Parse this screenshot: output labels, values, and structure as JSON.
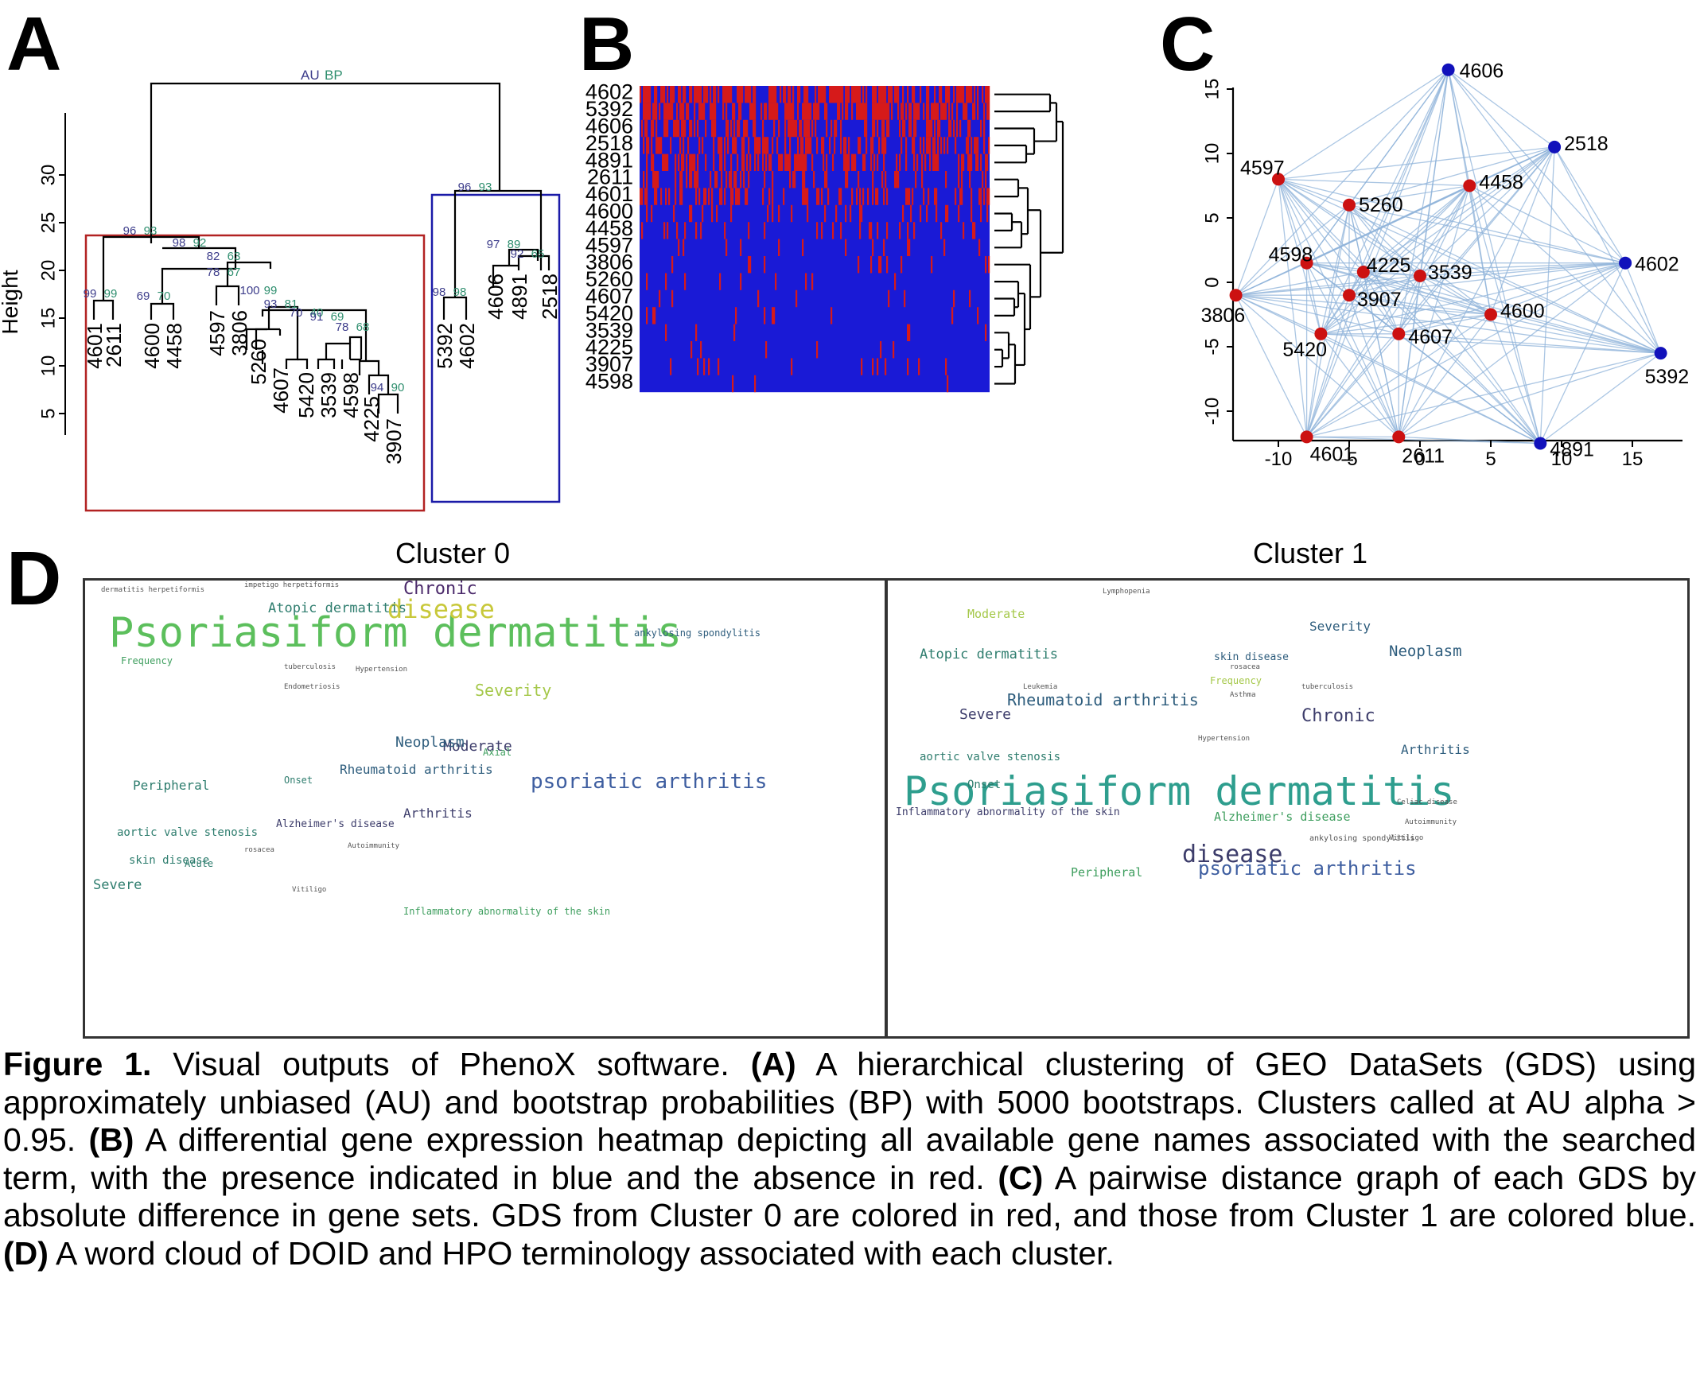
{
  "panels": {
    "A": "A",
    "B": "B",
    "C": "C",
    "D": "D"
  },
  "panelA": {
    "ylabel": "Height",
    "yticks": [
      "5",
      "10",
      "15",
      "20",
      "25",
      "30"
    ],
    "root_au": "AU",
    "root_bp": "BP",
    "leaves": [
      "4601",
      "2611",
      "4600",
      "4458",
      "4597",
      "3806",
      "5260",
      "4607",
      "5420",
      "3539",
      "4598",
      "4225",
      "3907",
      "5392",
      "4602",
      "4606",
      "4891",
      "2518"
    ],
    "values": [
      {
        "au": "96",
        "bp": "93"
      },
      {
        "au": "98",
        "bp": "92"
      },
      {
        "au": "82",
        "bp": "63"
      },
      {
        "au": "99",
        "bp": "99"
      },
      {
        "au": "69",
        "bp": "70"
      },
      {
        "au": "78",
        "bp": "67"
      },
      {
        "au": "100",
        "bp": "99"
      },
      {
        "au": "93",
        "bp": "81"
      },
      {
        "au": "70",
        "bp": "40"
      },
      {
        "au": "91",
        "bp": "69"
      },
      {
        "au": "78",
        "bp": "68"
      },
      {
        "au": "94",
        "bp": "90"
      },
      {
        "au": "96",
        "bp": "93"
      },
      {
        "au": "98",
        "bp": "98"
      },
      {
        "au": "97",
        "bp": "89"
      },
      {
        "au": "92",
        "bp": "65"
      }
    ]
  },
  "panelB": {
    "rows": [
      "4602",
      "5392",
      "4606",
      "2518",
      "4891",
      "2611",
      "4601",
      "4600",
      "4458",
      "4597",
      "3806",
      "5260",
      "4607",
      "5420",
      "3539",
      "4225",
      "3907",
      "4598"
    ],
    "presence_color": "#1a1ad6",
    "absence_color": "#d61a1a"
  },
  "panelC": {
    "xticks": [
      "-10",
      "-5",
      "0",
      "5",
      "10",
      "15"
    ],
    "yticks": [
      "15",
      "10",
      "5",
      "0",
      "-5",
      "-10"
    ],
    "cluster0_color": "#cc1111",
    "cluster1_color": "#1111bb",
    "edge_color": "#8fb3d9",
    "nodes": [
      {
        "label": "4606",
        "x": 2,
        "y": 16.5,
        "cluster": 1
      },
      {
        "label": "2518",
        "x": 9.5,
        "y": 10.5,
        "cluster": 1
      },
      {
        "label": "4602",
        "x": 14.5,
        "y": 1.5,
        "cluster": 1
      },
      {
        "label": "5392",
        "x": 17,
        "y": -5.5,
        "cluster": 1
      },
      {
        "label": "4891",
        "x": 8.5,
        "y": -12.5,
        "cluster": 1
      },
      {
        "label": "4597",
        "x": -10,
        "y": 8,
        "cluster": 0
      },
      {
        "label": "5260",
        "x": -5,
        "y": 6,
        "cluster": 0
      },
      {
        "label": "4458",
        "x": 3.5,
        "y": 7.5,
        "cluster": 0
      },
      {
        "label": "4598",
        "x": -8,
        "y": 1.5,
        "cluster": 0
      },
      {
        "label": "4225",
        "x": -4,
        "y": 0.8,
        "cluster": 0
      },
      {
        "label": "3539",
        "x": 0,
        "y": 0.5,
        "cluster": 0
      },
      {
        "label": "3907",
        "x": -5,
        "y": -1,
        "cluster": 0
      },
      {
        "label": "4600",
        "x": 5,
        "y": -2.5,
        "cluster": 0
      },
      {
        "label": "3806",
        "x": -13,
        "y": -1,
        "cluster": 0
      },
      {
        "label": "5420",
        "x": -7,
        "y": -4,
        "cluster": 0
      },
      {
        "label": "4607",
        "x": -1.5,
        "y": -4,
        "cluster": 0
      },
      {
        "label": "4601",
        "x": -8,
        "y": -12,
        "cluster": 0
      },
      {
        "label": "2611",
        "x": -1.5,
        "y": -12,
        "cluster": 0
      }
    ]
  },
  "panelD": {
    "cluster0_title": "Cluster 0",
    "cluster1_title": "Cluster 1",
    "cluster0_words": [
      {
        "t": "Psoriasiform dermatitis",
        "s": 52,
        "c": "#5cbf5c"
      },
      {
        "t": "disease",
        "s": 32,
        "c": "#c8c83a"
      },
      {
        "t": "Chronic",
        "s": 22,
        "c": "#4b2a6b"
      },
      {
        "t": "Atopic dermatitis",
        "s": 17,
        "c": "#2e7d6e"
      },
      {
        "t": "Severity",
        "s": 20,
        "c": "#a5c84a"
      },
      {
        "t": "Moderate",
        "s": 18,
        "c": "#3d3d6b"
      },
      {
        "t": "Neoplasm",
        "s": 18,
        "c": "#2e5d7d"
      },
      {
        "t": "psoriatic arthritis",
        "s": 26,
        "c": "#3e5ea0"
      },
      {
        "t": "Rheumatoid arthritis",
        "s": 16,
        "c": "#2e5d7d"
      },
      {
        "t": "Arthritis",
        "s": 16,
        "c": "#3d3d6b"
      },
      {
        "t": "Peripheral",
        "s": 16,
        "c": "#2e7d6e"
      },
      {
        "t": "aortic valve stenosis",
        "s": 14,
        "c": "#2e7d6e"
      },
      {
        "t": "skin disease",
        "s": 14,
        "c": "#2e7d6e"
      },
      {
        "t": "Severe",
        "s": 17,
        "c": "#2e7d6e"
      },
      {
        "t": "Frequency",
        "s": 12,
        "c": "#3e9e5e"
      },
      {
        "t": "ankylosing spondylitis",
        "s": 12,
        "c": "#2e5d7d"
      },
      {
        "t": "Alzheimer's disease",
        "s": 13,
        "c": "#3d3d6b"
      },
      {
        "t": "Inflammatory abnormality of the skin",
        "s": 12,
        "c": "#3e9e5e"
      },
      {
        "t": "Onset",
        "s": 12,
        "c": "#2e7d6e"
      },
      {
        "t": "Acute",
        "s": 12,
        "c": "#2e7d6e"
      },
      {
        "t": "Axial",
        "s": 12,
        "c": "#3e9e5e"
      },
      {
        "t": "dermatitis herpetiformis",
        "s": 9,
        "c": "#555555"
      },
      {
        "t": "impetigo herpetiformis",
        "s": 9,
        "c": "#555555"
      },
      {
        "t": "tuberculosis",
        "s": 9,
        "c": "#555555"
      },
      {
        "t": "Hypertension",
        "s": 9,
        "c": "#555555"
      },
      {
        "t": "Endometriosis",
        "s": 9,
        "c": "#555555"
      },
      {
        "t": "Vitiligo",
        "s": 9,
        "c": "#555555"
      },
      {
        "t": "rosacea",
        "s": 9,
        "c": "#555555"
      },
      {
        "t": "Autoimmunity",
        "s": 9,
        "c": "#555555"
      }
    ],
    "cluster1_words": [
      {
        "t": "Psoriasiform dermatitis",
        "s": 50,
        "c": "#2e9e8e"
      },
      {
        "t": "disease",
        "s": 30,
        "c": "#3d3d6b"
      },
      {
        "t": "psoriatic arthritis",
        "s": 24,
        "c": "#3e5ea0"
      },
      {
        "t": "Rheumatoid arthritis",
        "s": 20,
        "c": "#2e5d7d"
      },
      {
        "t": "Chronic",
        "s": 22,
        "c": "#3d3d6b"
      },
      {
        "t": "Neoplasm",
        "s": 19,
        "c": "#2e5d7d"
      },
      {
        "t": "Atopic dermatitis",
        "s": 17,
        "c": "#2e7d6e"
      },
      {
        "t": "Severe",
        "s": 18,
        "c": "#3d3d6b"
      },
      {
        "t": "Moderate",
        "s": 15,
        "c": "#a5c84a"
      },
      {
        "t": "Severity",
        "s": 16,
        "c": "#2e5d7d"
      },
      {
        "t": "Arthritis",
        "s": 16,
        "c": "#2e5d7d"
      },
      {
        "t": "aortic valve stenosis",
        "s": 14,
        "c": "#2e7d6e"
      },
      {
        "t": "Alzheimer's disease",
        "s": 15,
        "c": "#3e9e5e"
      },
      {
        "t": "Inflammatory abnormality of the skin",
        "s": 13,
        "c": "#3d3d6b"
      },
      {
        "t": "skin disease",
        "s": 13,
        "c": "#2e5d7d"
      },
      {
        "t": "Peripheral",
        "s": 15,
        "c": "#3e9e5e"
      },
      {
        "t": "Frequency",
        "s": 12,
        "c": "#a5c84a"
      },
      {
        "t": "Onset",
        "s": 14,
        "c": "#2e7d6e"
      },
      {
        "t": "ankylosing spondylitis",
        "s": 10,
        "c": "#555555"
      },
      {
        "t": "tuberculosis",
        "s": 9,
        "c": "#555555"
      },
      {
        "t": "Vitiligo",
        "s": 9,
        "c": "#555555"
      },
      {
        "t": "Autoimmunity",
        "s": 9,
        "c": "#555555"
      },
      {
        "t": "Lymphopenia",
        "s": 9,
        "c": "#555555"
      },
      {
        "t": "Leukemia",
        "s": 9,
        "c": "#555555"
      },
      {
        "t": "Asthma",
        "s": 9,
        "c": "#555555"
      },
      {
        "t": "Hypertension",
        "s": 9,
        "c": "#555555"
      },
      {
        "t": "rosacea",
        "s": 9,
        "c": "#555555"
      },
      {
        "t": "Celiac disease",
        "s": 9,
        "c": "#555555"
      }
    ]
  },
  "caption": {
    "fig": "Figure 1.",
    "intro": " Visual outputs of PhenoX software. ",
    "a_label": "(A)",
    "a_text": " A hierarchical clustering of GEO DataSets (GDS) using approximately unbiased (AU) and bootstrap probabilities (BP) with 5000 bootstraps. Clusters called at AU alpha > 0.95. ",
    "b_label": "(B)",
    "b_text": " A differential gene expression heatmap depicting all available gene names associated with the searched term, with the presence indicated in blue and the absence in red. ",
    "c_label": "(C)",
    "c_text": "  A pairwise distance graph of each GDS by absolute difference in gene sets. GDS from Cluster 0 are colored in red, and those from Cluster 1 are colored blue. ",
    "d_label": "(D)",
    "d_text": " A word cloud of DOID and HPO terminology associated with each cluster."
  }
}
